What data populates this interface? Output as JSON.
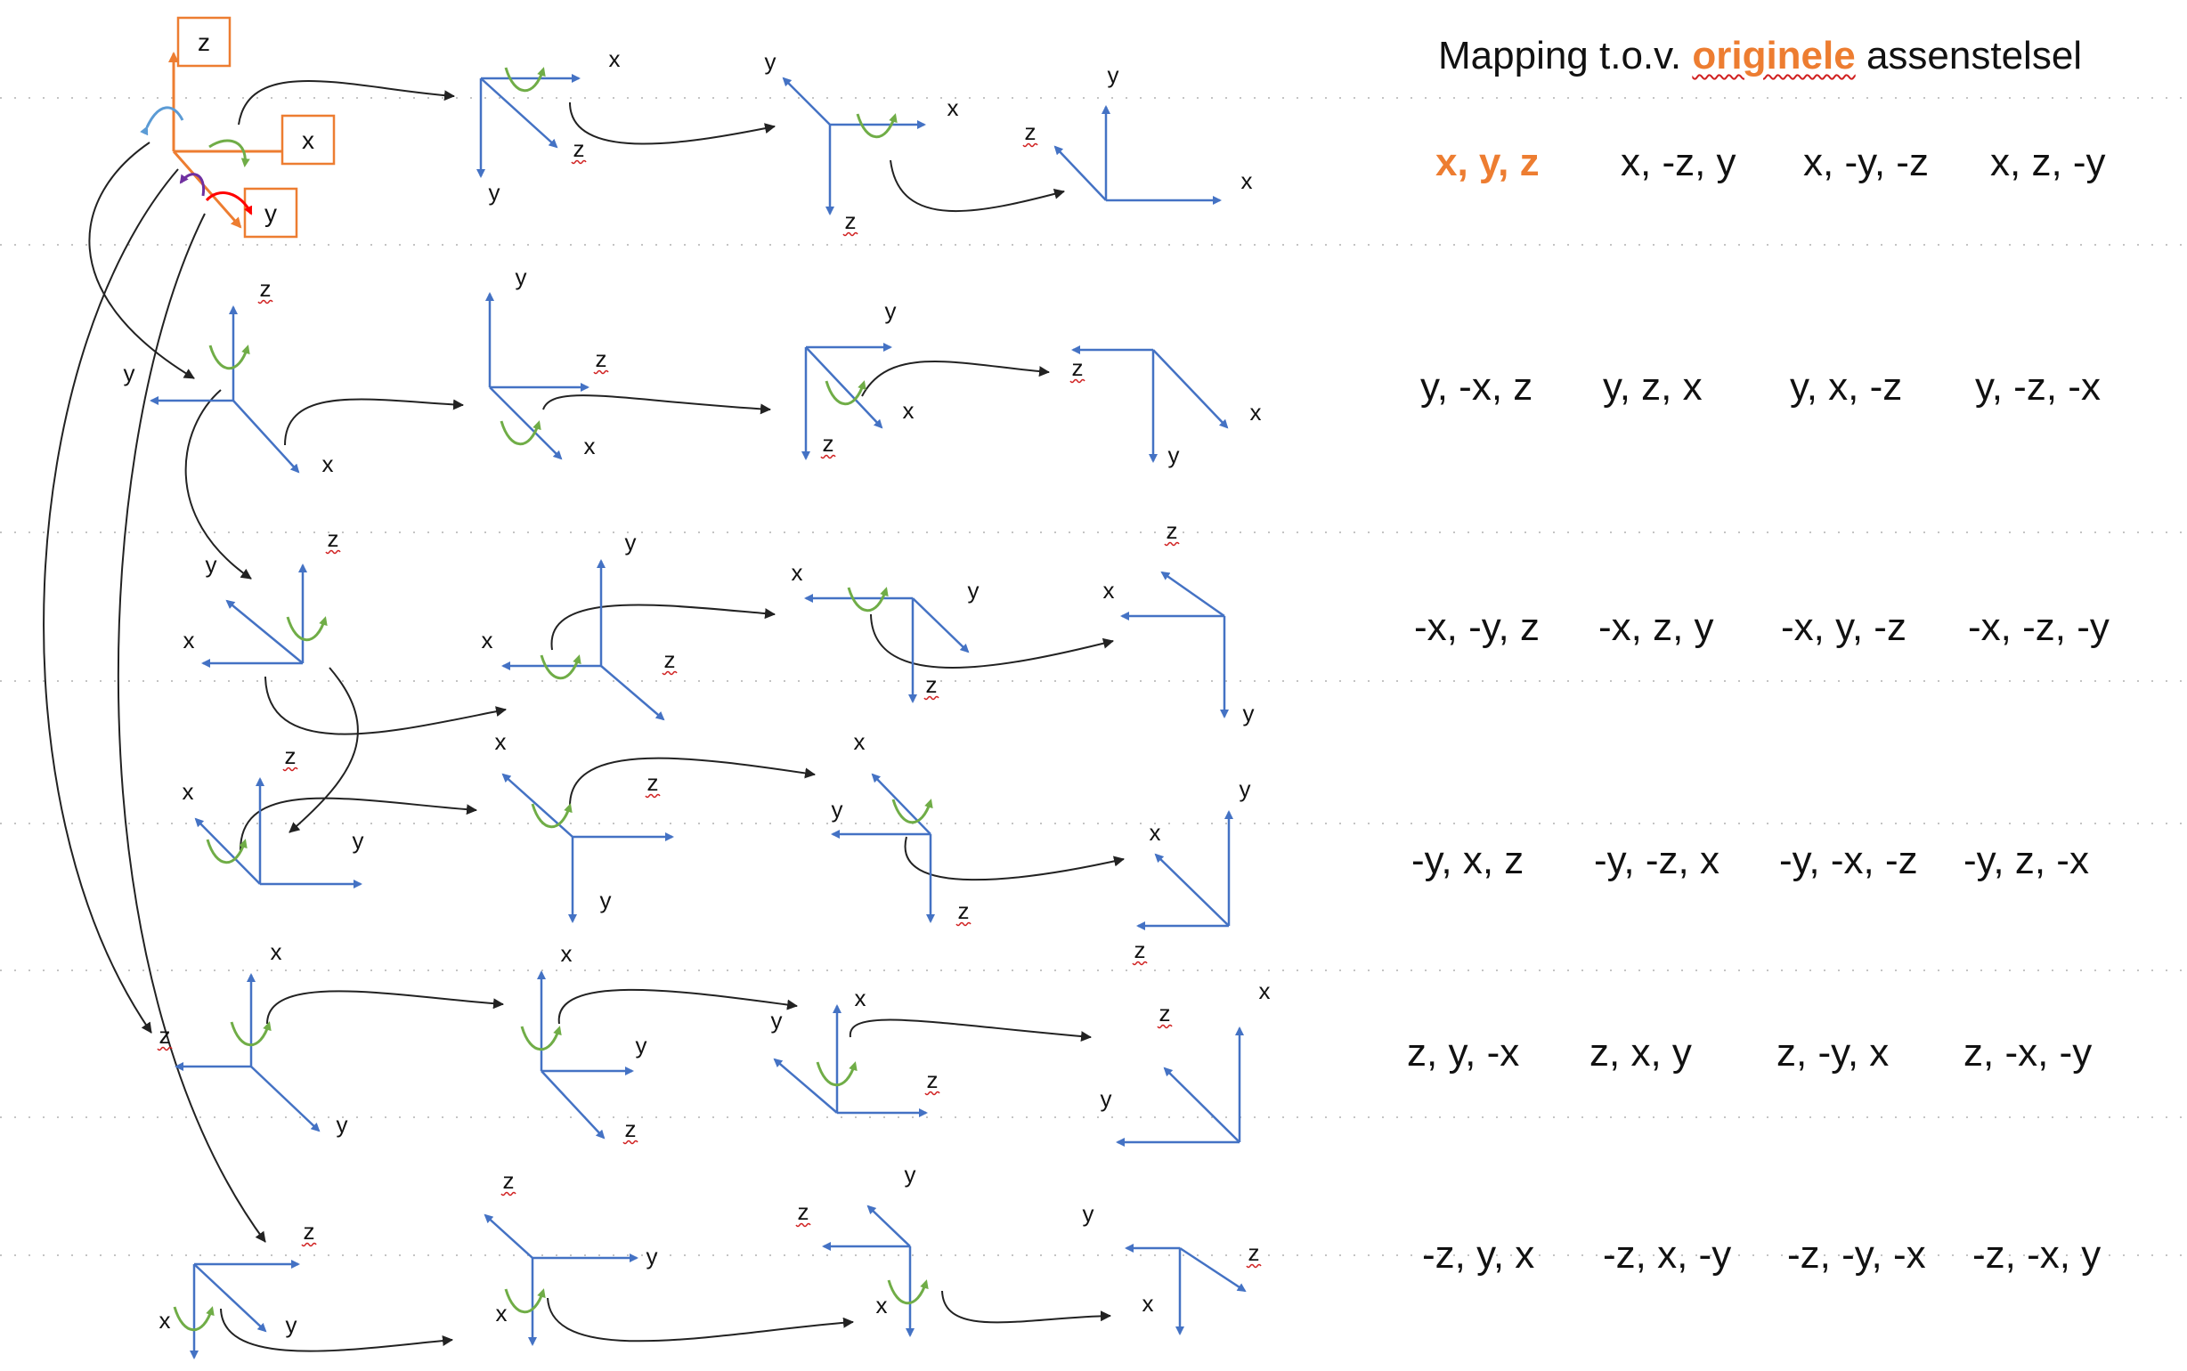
{
  "title": {
    "prefix": "Mapping t.o.v. ",
    "accent": "originele",
    "suffix": " assenstelsel"
  },
  "colors": {
    "axis": "#4472c4",
    "rotation": "#70ad47",
    "origin": "#ed7d31",
    "accent": "#ed7d31",
    "purple": "#7030a0",
    "red": "#ff0000",
    "light_blue": "#5b9bd5",
    "connector": "#222222"
  },
  "axis_names": [
    "x",
    "y",
    "z"
  ],
  "mappings": [
    [
      "x, y, z",
      "x, -z, y",
      "x, -y, -z",
      "x, z, -y"
    ],
    [
      "y, -x, z",
      "y, z, x",
      "y, x, -z",
      "y, -z, -x"
    ],
    [
      "-x, -y, z",
      "-x, z, y",
      "-x, y, -z",
      "-x, -z, -y"
    ],
    [
      "-y, x, z",
      "-y, -z, x",
      "-y, -x, -z",
      "-y, z, -x"
    ],
    [
      "z, y, -x",
      "z, x, y",
      "z, -y, x",
      "z, -x, -y"
    ],
    [
      "-z, y, x",
      "-z, x, -y",
      "-z, -y, -x",
      "-z, -x, y"
    ]
  ],
  "frames": [
    [
      {
        "origin": "x/r",
        "labels": [
          "x",
          "y",
          "z"
        ]
      },
      {
        "labels": [
          "x",
          "y",
          "z"
        ]
      },
      {
        "labels": [
          "y",
          "x",
          "z"
        ]
      },
      {
        "labels": [
          "y",
          "z",
          "x"
        ]
      }
    ],
    [
      {
        "labels": [
          "z",
          "y",
          "x"
        ]
      },
      {
        "labels": [
          "y",
          "z",
          "x"
        ]
      },
      {
        "labels": [
          "y",
          "x",
          "z"
        ]
      },
      {
        "labels": [
          "z",
          "x",
          "y"
        ]
      }
    ],
    [
      {
        "labels": [
          "z",
          "y",
          "x"
        ]
      },
      {
        "labels": [
          "y",
          "x",
          "z"
        ]
      },
      {
        "labels": [
          "x",
          "y",
          "z"
        ]
      },
      {
        "labels": [
          "z",
          "x",
          "y"
        ]
      }
    ],
    [
      {
        "labels": [
          "z",
          "x",
          "y"
        ]
      },
      {
        "labels": [
          "x",
          "z",
          "y"
        ]
      },
      {
        "labels": [
          "x",
          "y",
          "z"
        ]
      },
      {
        "labels": [
          "y",
          "x",
          "z"
        ]
      }
    ],
    [
      {
        "labels": [
          "x",
          "z",
          "y"
        ]
      },
      {
        "labels": [
          "x",
          "y",
          "z"
        ]
      },
      {
        "labels": [
          "x",
          "y",
          "z"
        ]
      },
      {
        "labels": [
          "x",
          "z",
          "y"
        ]
      }
    ],
    [
      {
        "labels": [
          "z",
          "x",
          "y"
        ]
      },
      {
        "labels": [
          "z",
          "y",
          "x"
        ]
      },
      {
        "labels": [
          "y",
          "z",
          "x"
        ]
      },
      {
        "labels": [
          "y",
          "z",
          "x"
        ]
      }
    ]
  ]
}
